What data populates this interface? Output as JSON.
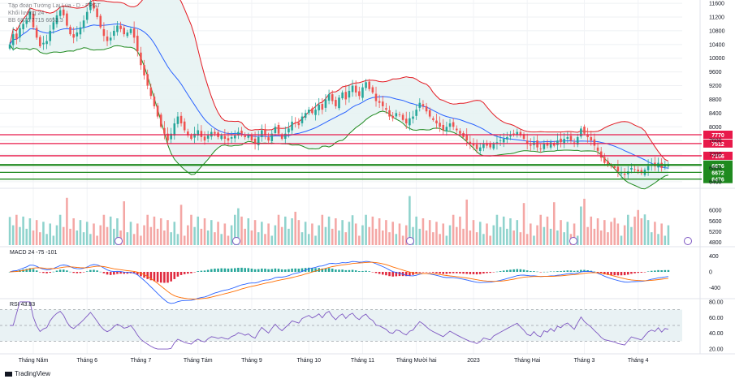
{
  "header": {
    "symbol_line": "Tập đoàn Tường Lai Lùa ‑ D ‑ FPGT",
    "volume_line": "Khối lượng  24 ·",
    "bb_line": "BB  6876  7715  6653.3"
  },
  "brand": {
    "label": "TradingView",
    "logo_icon": "tradingview-logo-icon"
  },
  "colors": {
    "up": "#26a69a",
    "down": "#ef5350",
    "bb_band": "#e31b23",
    "bb_basis": "#2962ff",
    "bb_fill": "#e7f3f3",
    "sr_red": "#e8194a",
    "sr_green": "#1f8a1f",
    "macd_line": "#2962ff",
    "signal_line": "#ff6d00",
    "rsi_line": "#7e57c2"
  },
  "chart_data": [
    {
      "type": "candlestick",
      "title": "",
      "x_ticks": [
        "Tháng Năm",
        "Tháng 6",
        "Tháng 7",
        "Tháng Tám",
        "Tháng 9",
        "Tháng 10",
        "Tháng 11",
        "Tháng Mười hai",
        "2023",
        "Tháng Hai",
        "Tháng 3",
        "Tháng 4"
      ],
      "y_ticks": [
        11600,
        11200,
        10800,
        10400,
        10000,
        9600,
        9200,
        8800,
        8400,
        8000,
        7600,
        7200,
        6800,
        6400
      ],
      "ylim": [
        6350,
        11650
      ],
      "close": [
        10400,
        10700,
        10550,
        10880,
        11000,
        11100,
        11350,
        10900,
        10600,
        10350,
        10450,
        10500,
        10800,
        11050,
        11250,
        11400,
        11250,
        10950,
        10700,
        10600,
        10750,
        10900,
        11100,
        11350,
        11650,
        11450,
        11200,
        10900,
        10650,
        10500,
        10600,
        10800,
        10950,
        10850,
        10700,
        10750,
        10850,
        10600,
        10200,
        9800,
        9500,
        9200,
        8900,
        8600,
        8300,
        8000,
        7800,
        7600,
        7800,
        8100,
        8300,
        8100,
        7900,
        7750,
        7650,
        7800,
        7900,
        7700,
        7600,
        7750,
        7850,
        7800,
        7700,
        7750,
        7650,
        7600,
        7700,
        7750,
        7850,
        7800,
        7700,
        7750,
        7600,
        7500,
        7700,
        7900,
        7750,
        7600,
        7800,
        8000,
        7800,
        7650,
        7800,
        7950,
        8150,
        8100,
        8050,
        8300,
        8400,
        8500,
        8400,
        8500,
        8650,
        8500,
        8800,
        8950,
        8750,
        8600,
        8850,
        9000,
        8800,
        9050,
        9200,
        9000,
        8900,
        9150,
        9300,
        9100,
        9000,
        8750,
        8700,
        8600,
        8500,
        8300,
        8250,
        8400,
        8350,
        8200,
        8100,
        8250,
        8300,
        8500,
        8700,
        8600,
        8450,
        8300,
        8200,
        8100,
        8000,
        7900,
        8000,
        8100,
        8000,
        7900,
        7800,
        7700,
        7600,
        7500,
        7450,
        7350,
        7400,
        7500,
        7450,
        7400,
        7500,
        7550,
        7600,
        7650,
        7700,
        7750,
        7800,
        7850,
        7750,
        7650,
        7500,
        7450,
        7550,
        7400,
        7350,
        7500,
        7450,
        7550,
        7450,
        7600,
        7550,
        7650,
        7700,
        7600,
        7500,
        7700,
        7950,
        7800,
        7700,
        7600,
        7450,
        7300,
        7100,
        6950,
        6900,
        6850,
        6800,
        6700,
        6650,
        6600,
        6700,
        6800,
        6750,
        6700,
        6650,
        6750,
        6850,
        6900,
        6850,
        6950,
        6800,
        6900,
        6876
      ],
      "support_resistance": [
        7770,
        7512,
        7156,
        6900,
        6876,
        6672,
        6476
      ],
      "bollinger": {
        "period": 20,
        "stddev": 2
      },
      "grid": true,
      "price_scale": "right"
    },
    {
      "type": "bar",
      "title": "Khối lượng",
      "y_ticks": [
        6000,
        5600,
        5200,
        4800
      ],
      "ylim": [
        4700,
        6700
      ]
    },
    {
      "type": "line",
      "title": "MACD",
      "label": "MACD  24  -75  -101",
      "y_ticks": [
        400,
        0,
        -400
      ],
      "ylim": [
        -600,
        600
      ]
    },
    {
      "type": "line",
      "title": "RSI",
      "label": "RSI  43.83",
      "y_ticks": [
        80,
        60,
        40,
        20
      ],
      "levels": [
        70,
        30
      ],
      "ylim": [
        18,
        82
      ]
    }
  ]
}
